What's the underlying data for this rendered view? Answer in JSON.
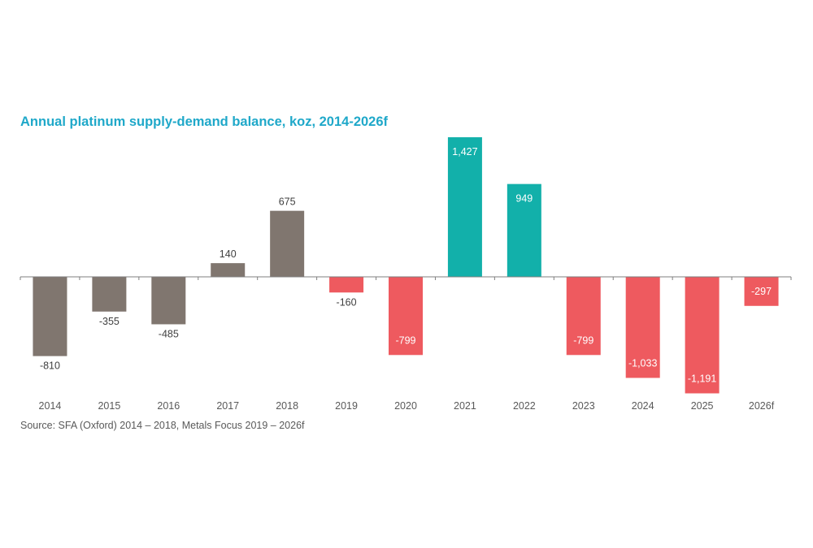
{
  "colors": {
    "title": "#1fa8c9",
    "text": "#595959",
    "axis": "#7f7f7f",
    "historical": "#80766f",
    "deficit": "#ee5a5f",
    "surplus": "#12b0aa",
    "label_inside": "#ffffff",
    "label_outside": "#3f3f3f"
  },
  "chart_data": {
    "type": "bar",
    "title": "Annual platinum supply-demand balance, koz, 2014-2026f",
    "source": "Source: SFA (Oxford) 2014 – 2018, Metals Focus 2019 – 2026f",
    "categories": [
      "2014",
      "2015",
      "2016",
      "2017",
      "2018",
      "2019",
      "2020",
      "2021",
      "2022",
      "2023",
      "2024",
      "2025",
      "2026f"
    ],
    "values": [
      -810,
      -355,
      -485,
      140,
      675,
      -160,
      -799,
      1427,
      949,
      -799,
      -1033,
      -1191,
      -297
    ],
    "data_labels": [
      "-810",
      "-355",
      "-485",
      "140",
      "675",
      "-160",
      "-799",
      "1,427",
      "949",
      "-799",
      "-1,033",
      "-1,191",
      "-297"
    ],
    "bar_colors": [
      "historical",
      "historical",
      "historical",
      "historical",
      "historical",
      "deficit",
      "deficit",
      "surplus",
      "surplus",
      "deficit",
      "deficit",
      "deficit",
      "deficit"
    ],
    "label_inside": [
      false,
      false,
      false,
      false,
      false,
      false,
      true,
      true,
      true,
      true,
      true,
      true,
      true
    ],
    "xlabel": "",
    "ylabel": "",
    "ylim": [
      -1191,
      1427
    ],
    "grid": false,
    "legend": "none"
  }
}
